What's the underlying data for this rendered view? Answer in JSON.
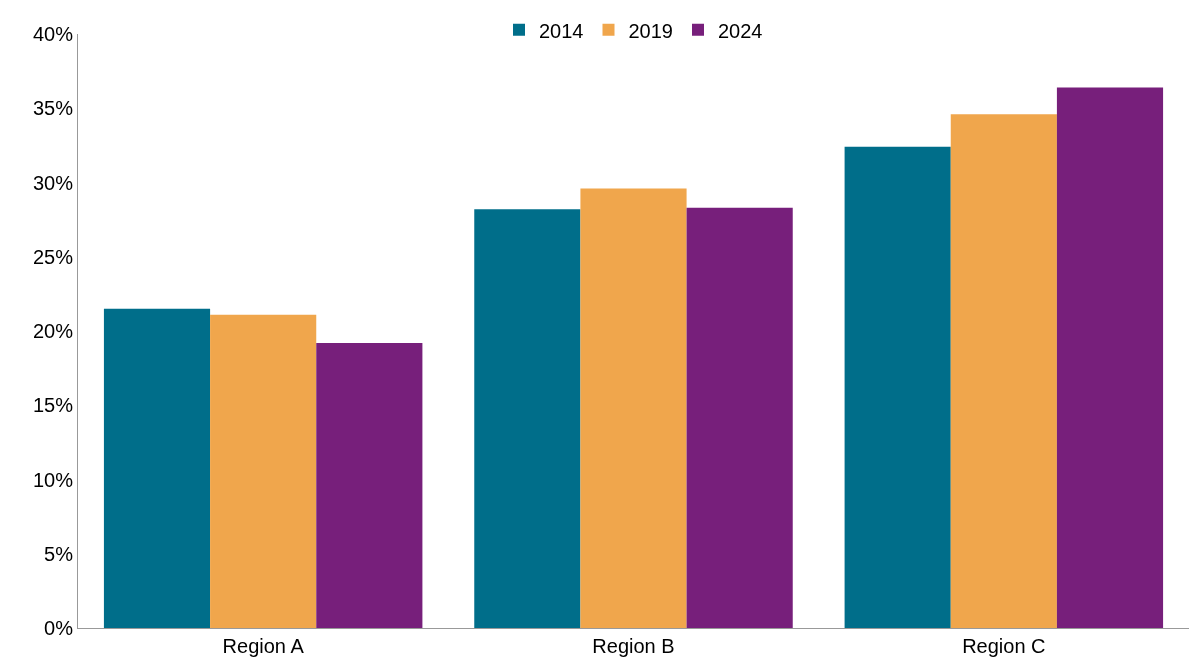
{
  "chart_data": {
    "type": "bar",
    "categories": [
      "Region A",
      "Region B",
      "Region C"
    ],
    "series": [
      {
        "name": "2014",
        "color": "#006e8a",
        "values": [
          21.5,
          28.2,
          32.4
        ]
      },
      {
        "name": "2019",
        "color": "#f0a64c",
        "values": [
          21.1,
          29.6,
          34.6
        ]
      },
      {
        "name": "2024",
        "color": "#771f7b",
        "values": [
          19.2,
          28.3,
          36.4
        ]
      }
    ],
    "ylim": [
      0,
      40
    ],
    "yticks": [
      {
        "value": 0,
        "label": "0%"
      },
      {
        "value": 5,
        "label": "5%"
      },
      {
        "value": 10,
        "label": "10%"
      },
      {
        "value": 15,
        "label": "15%"
      },
      {
        "value": 20,
        "label": "20%"
      },
      {
        "value": 25,
        "label": "25%"
      },
      {
        "value": 30,
        "label": "30%"
      },
      {
        "value": 35,
        "label": "35%"
      },
      {
        "value": 40,
        "label": "40%"
      }
    ],
    "legend": "top"
  }
}
